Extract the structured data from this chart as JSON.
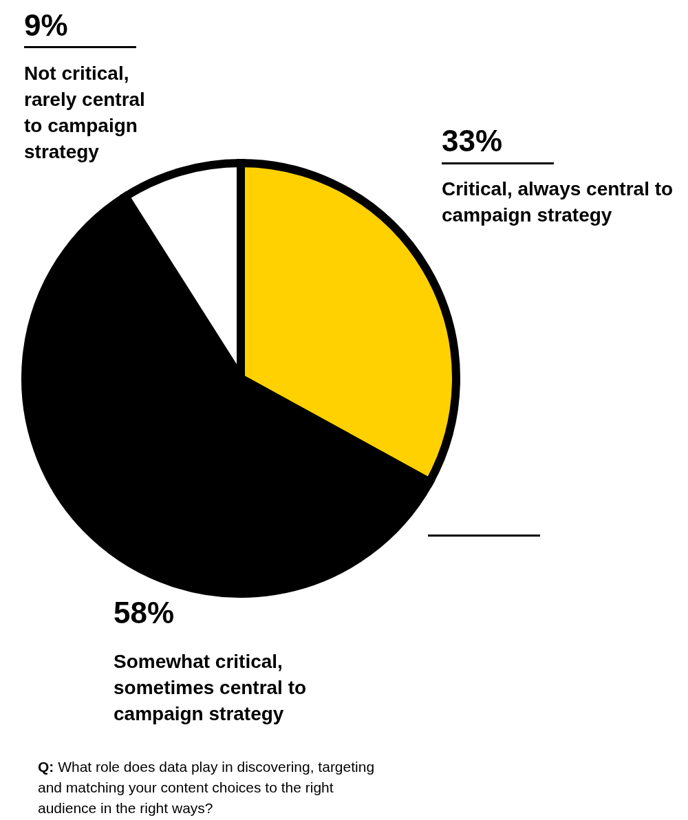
{
  "chart_data": {
    "type": "pie",
    "categories": [
      "Critical, always central to campaign strategy",
      "Somewhat critical, sometimes central to campaign strategy",
      "Not critical, rarely central to campaign strategy"
    ],
    "values": [
      33,
      58,
      9
    ],
    "value_labels": [
      "33%",
      "58%",
      "9%"
    ],
    "colors": [
      "#ffd100",
      "#000000",
      "#ffffff"
    ],
    "annotations": [
      "Q: What role does data play in discovering, targeting and matching your content choices to the right audience in the right ways?"
    ]
  }
}
